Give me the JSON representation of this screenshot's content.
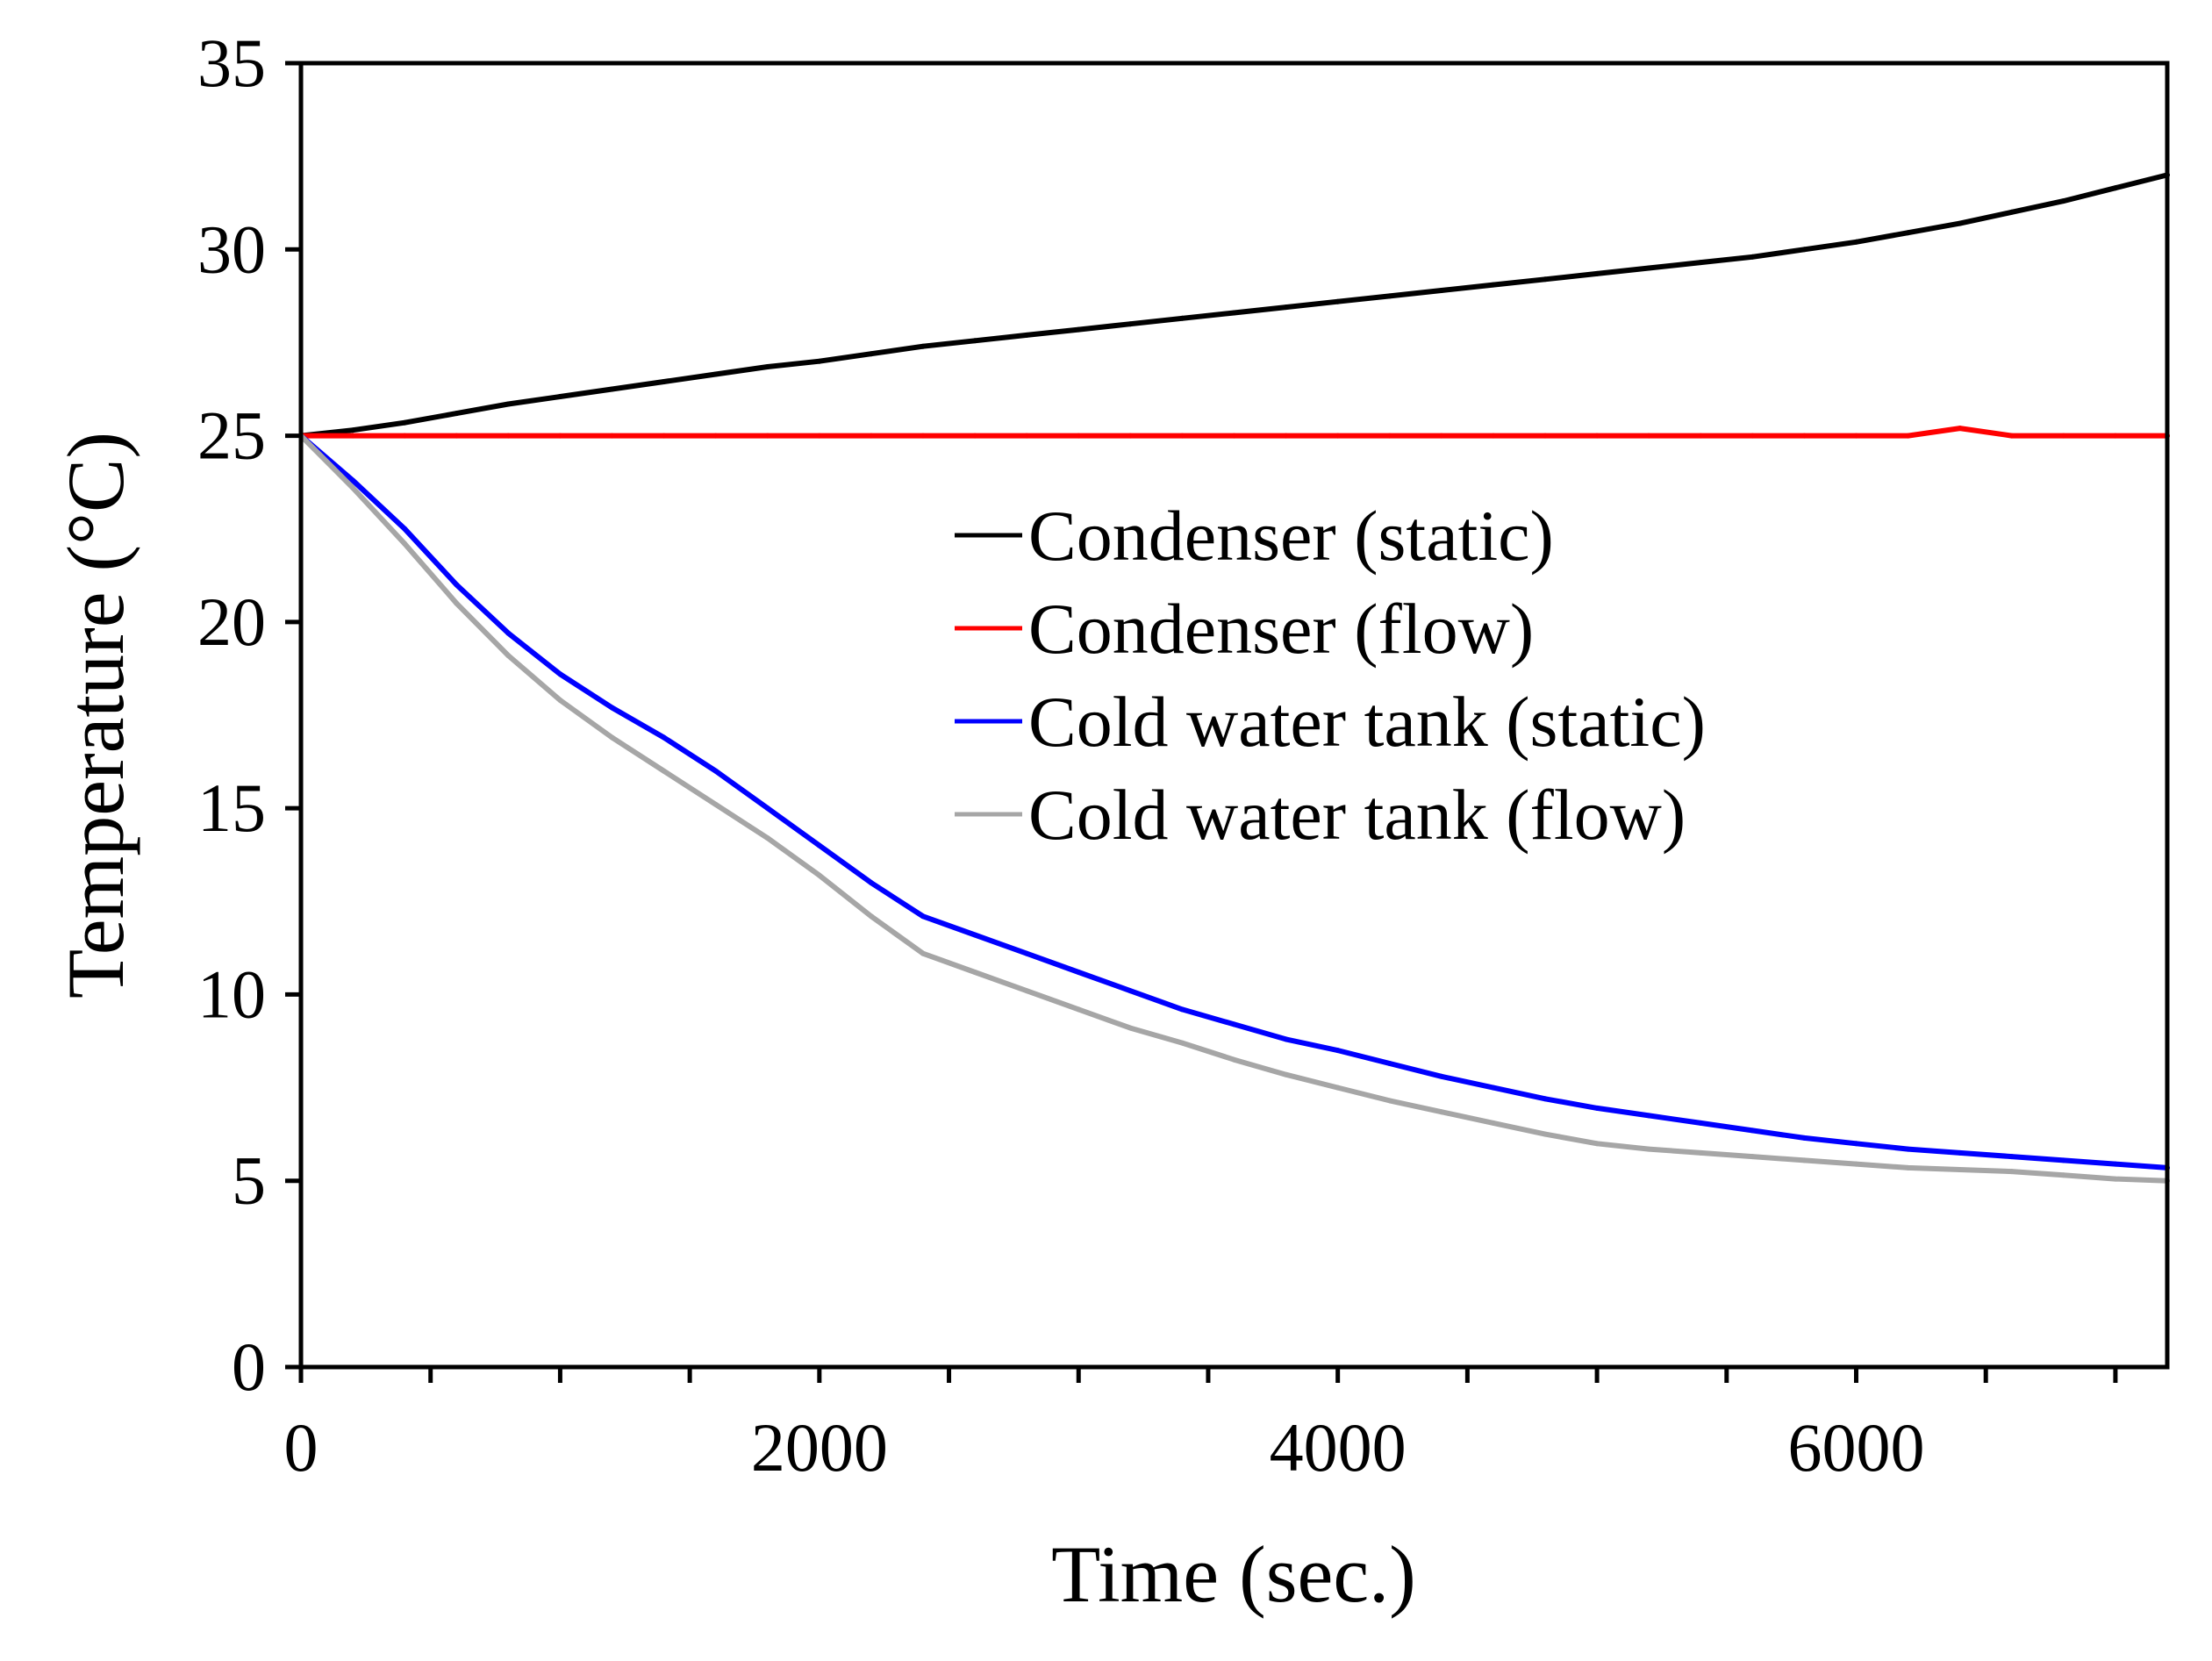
{
  "chart_data": {
    "type": "line",
    "title": "",
    "xlabel": "Time (sec.)",
    "ylabel": "Temperature (°C)",
    "xlim": [
      0,
      7200
    ],
    "ylim": [
      0,
      35
    ],
    "x_major_ticks": [
      0,
      2000,
      4000,
      6000
    ],
    "x_minor_ticks": [
      500,
      1000,
      1500,
      2500,
      3000,
      3500,
      4500,
      5000,
      5500,
      6500,
      7000
    ],
    "y_ticks": [
      0,
      5,
      10,
      15,
      20,
      25,
      30,
      35
    ],
    "grid": false,
    "legend_position": "center-right",
    "x": [
      0,
      200,
      400,
      600,
      800,
      1000,
      1200,
      1400,
      1600,
      1800,
      2000,
      2200,
      2400,
      2600,
      2800,
      3000,
      3200,
      3400,
      3600,
      3800,
      4000,
      4200,
      4400,
      4600,
      4800,
      5000,
      5200,
      5400,
      5600,
      5800,
      6000,
      6200,
      6400,
      6600,
      6800,
      7000,
      7200
    ],
    "series": [
      {
        "name": "Condenser (static)",
        "color": "#000000",
        "values": [
          25.0,
          25.15,
          25.35,
          25.6,
          25.85,
          26.05,
          26.25,
          26.45,
          26.65,
          26.85,
          27.0,
          27.2,
          27.4,
          27.55,
          27.7,
          27.85,
          28.0,
          28.15,
          28.3,
          28.45,
          28.6,
          28.75,
          28.9,
          29.05,
          29.2,
          29.35,
          29.5,
          29.65,
          29.8,
          30.0,
          30.2,
          30.45,
          30.7,
          31.0,
          31.3,
          31.65,
          32.0
        ]
      },
      {
        "name": "Condenser (flow)",
        "color": "#ff0000",
        "values": [
          25.0,
          25.0,
          25.0,
          25.0,
          25.0,
          25.0,
          25.0,
          25.0,
          25.0,
          25.0,
          25.0,
          25.0,
          25.0,
          25.0,
          25.0,
          25.0,
          25.0,
          25.0,
          25.0,
          25.0,
          25.0,
          25.0,
          25.0,
          25.0,
          25.0,
          25.0,
          25.0,
          25.0,
          25.0,
          25.0,
          25.0,
          25.0,
          25.2,
          25.0,
          25.0,
          25.0,
          25.0
        ]
      },
      {
        "name": "Cold water tank (static)",
        "color": "#0000ff",
        "values": [
          25.0,
          23.8,
          22.5,
          21.0,
          19.7,
          18.6,
          17.7,
          16.9,
          16.0,
          15.0,
          14.0,
          13.0,
          12.1,
          11.6,
          11.1,
          10.6,
          10.1,
          9.6,
          9.2,
          8.8,
          8.5,
          8.15,
          7.8,
          7.5,
          7.2,
          6.95,
          6.75,
          6.55,
          6.35,
          6.15,
          6.0,
          5.85,
          5.75,
          5.65,
          5.55,
          5.45,
          5.35
        ]
      },
      {
        "name": "Cold water tank (flow)",
        "color": "#a6a6a6",
        "values": [
          25.0,
          23.6,
          22.1,
          20.5,
          19.1,
          17.9,
          16.9,
          16.0,
          15.1,
          14.2,
          13.2,
          12.1,
          11.1,
          10.6,
          10.1,
          9.6,
          9.1,
          8.7,
          8.25,
          7.85,
          7.5,
          7.15,
          6.85,
          6.55,
          6.25,
          6.0,
          5.85,
          5.75,
          5.65,
          5.55,
          5.45,
          5.35,
          5.3,
          5.25,
          5.15,
          5.05,
          5.0
        ]
      }
    ]
  }
}
